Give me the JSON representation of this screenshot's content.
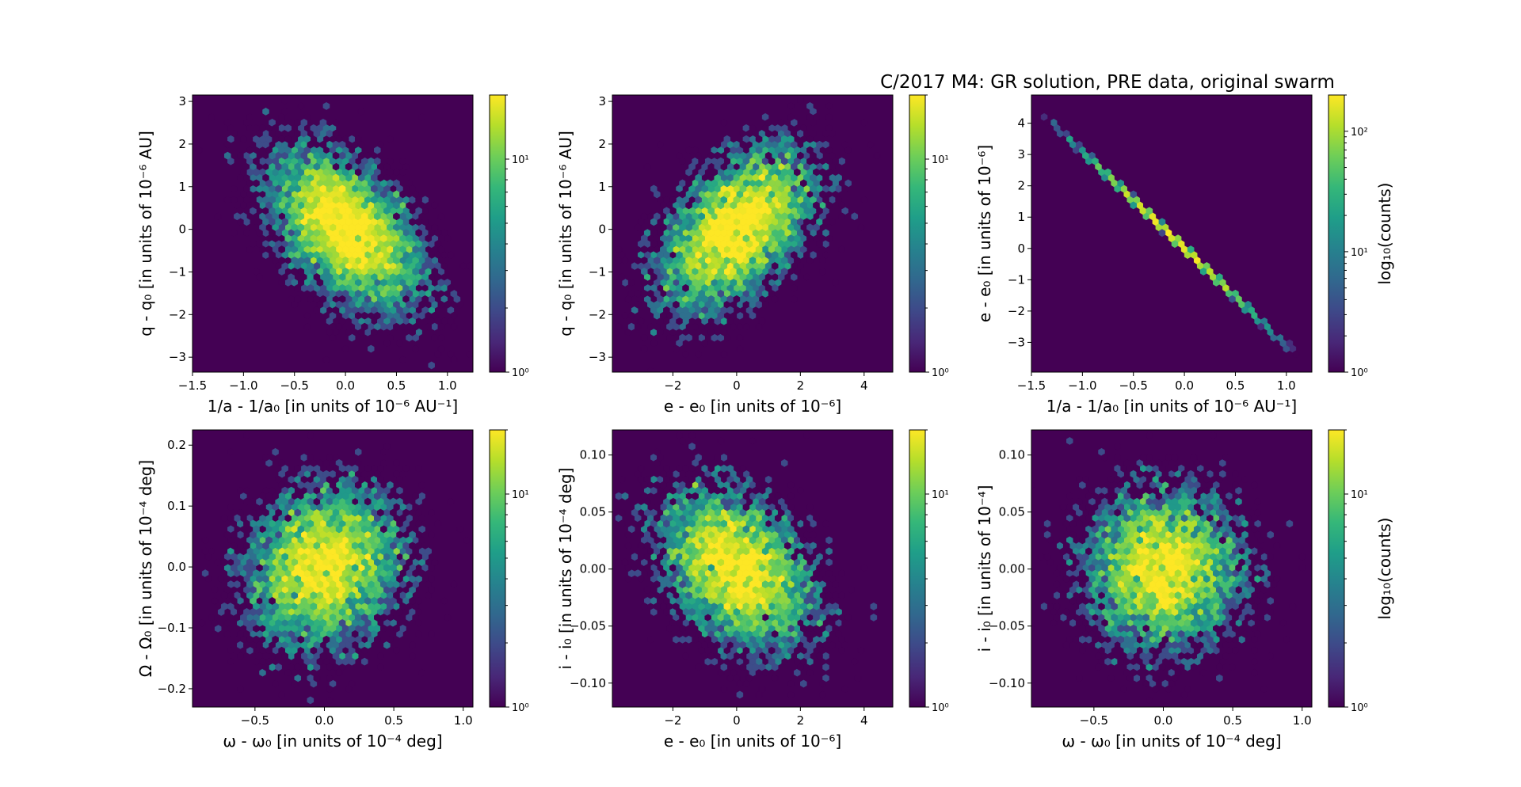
{
  "figure": {
    "title": "C/2017 M4: GR solution, PRE data, original swarm"
  },
  "colormap": {
    "name": "viridis",
    "stops": [
      "#440154",
      "#482878",
      "#3e4989",
      "#31688e",
      "#26828e",
      "#1f9e89",
      "#35b779",
      "#6ece58",
      "#b5de2b",
      "#fde725"
    ]
  },
  "chart_data": [
    {
      "type": "heatmap",
      "subtype": "hexbin",
      "panel": "top-left",
      "xlabel": "1/a - 1/a₀ [in units of 10⁻⁶ AU⁻¹]",
      "ylabel": "q - q₀ [in units of 10⁻⁶ AU]",
      "xlim": [
        -1.5,
        1.25
      ],
      "ylim": [
        -3.35,
        3.15
      ],
      "xticks": [
        -1.5,
        -1.0,
        -0.5,
        0.0,
        0.5,
        1.0
      ],
      "xticklabels": [
        "−1.5",
        "−1.0",
        "−0.5",
        "0.0",
        "0.5",
        "1.0"
      ],
      "yticks": [
        -3,
        -2,
        -1,
        0,
        1,
        2,
        3
      ],
      "yticklabels": [
        "−3",
        "−2",
        "−1",
        "0",
        "1",
        "2",
        "3"
      ],
      "distribution": {
        "kind": "gaussian",
        "mean_x": 0.0,
        "mean_y": 0.0,
        "std_x": 0.38,
        "std_y": 0.95,
        "correlation": -0.5
      },
      "color_scale": "log",
      "count_range": [
        1,
        20
      ],
      "colorbar": {
        "ticks": [
          1,
          10
        ],
        "ticklabels": [
          "10⁰",
          "10¹"
        ],
        "label": ""
      }
    },
    {
      "type": "heatmap",
      "subtype": "hexbin",
      "panel": "top-middle",
      "xlabel": "e - e₀ [in units of 10⁻⁶]",
      "ylabel": "q - q₀ [in units of 10⁻⁶ AU]",
      "xlim": [
        -3.9,
        4.9
      ],
      "ylim": [
        -3.35,
        3.15
      ],
      "xticks": [
        -2,
        0,
        2,
        4
      ],
      "xticklabels": [
        "−2",
        "0",
        "2",
        "4"
      ],
      "yticks": [
        -3,
        -2,
        -1,
        0,
        1,
        2,
        3
      ],
      "yticklabels": [
        "−3",
        "−2",
        "−1",
        "0",
        "1",
        "2",
        "3"
      ],
      "distribution": {
        "kind": "gaussian",
        "mean_x": 0.0,
        "mean_y": 0.0,
        "std_x": 1.2,
        "std_y": 0.95,
        "correlation": 0.5
      },
      "color_scale": "log",
      "count_range": [
        1,
        20
      ],
      "colorbar": {
        "ticks": [
          1,
          10
        ],
        "ticklabels": [
          "10⁰",
          "10¹"
        ],
        "label": ""
      }
    },
    {
      "type": "heatmap",
      "subtype": "hexbin",
      "panel": "top-right",
      "xlabel": "1/a - 1/a₀ [in units of 10⁻⁶ AU⁻¹]",
      "ylabel": "e - e₀ [in units of 10⁻⁶]",
      "xlim": [
        -1.5,
        1.25
      ],
      "ylim": [
        -3.95,
        4.9
      ],
      "xticks": [
        -1.5,
        -1.0,
        -0.5,
        0.0,
        0.5,
        1.0
      ],
      "xticklabels": [
        "−1.5",
        "−1.0",
        "−0.5",
        "0.0",
        "0.5",
        "1.0"
      ],
      "yticks": [
        -3,
        -2,
        -1,
        0,
        1,
        2,
        3,
        4
      ],
      "yticklabels": [
        "−3",
        "−2",
        "−1",
        "0",
        "1",
        "2",
        "3",
        "4"
      ],
      "distribution": {
        "kind": "linear",
        "slope": -3.1,
        "x_range": [
          -1.38,
          1.12
        ]
      },
      "color_scale": "log",
      "count_range": [
        1,
        200
      ],
      "colorbar": {
        "ticks": [
          1,
          10,
          100
        ],
        "ticklabels": [
          "10⁰",
          "10¹",
          "10²"
        ],
        "label": "log₁₀(counts)"
      }
    },
    {
      "type": "heatmap",
      "subtype": "hexbin",
      "panel": "bottom-left",
      "xlabel": "ω - ω₀ [in units of 10⁻⁴ deg]",
      "ylabel": "Ω - Ω₀ [in units of 10⁻⁴ deg]",
      "xlim": [
        -0.95,
        1.07
      ],
      "ylim": [
        -0.23,
        0.225
      ],
      "xticks": [
        -0.5,
        0.0,
        0.5,
        1.0
      ],
      "xticklabels": [
        "−0.5",
        "0.0",
        "0.5",
        "1.0"
      ],
      "yticks": [
        -0.2,
        -0.1,
        0.0,
        0.1,
        0.2
      ],
      "yticklabels": [
        "−0.2",
        "−0.1",
        "0.0",
        "0.1",
        "0.2"
      ],
      "distribution": {
        "kind": "gaussian",
        "mean_x": 0.0,
        "mean_y": 0.0,
        "std_x": 0.28,
        "std_y": 0.066,
        "correlation": 0.15
      },
      "color_scale": "log",
      "count_range": [
        1,
        20
      ],
      "colorbar": {
        "ticks": [
          1,
          10
        ],
        "ticklabels": [
          "10⁰",
          "10¹"
        ],
        "label": ""
      }
    },
    {
      "type": "heatmap",
      "subtype": "hexbin",
      "panel": "bottom-middle",
      "xlabel": "e - e₀ [in units of 10⁻⁶]",
      "ylabel": "i - i₀ [in units of 10⁻⁴ deg]",
      "xlim": [
        -3.9,
        4.9
      ],
      "ylim": [
        -0.121,
        0.122
      ],
      "xticks": [
        -2,
        0,
        2,
        4
      ],
      "xticklabels": [
        "−2",
        "0",
        "2",
        "4"
      ],
      "yticks": [
        -0.1,
        -0.05,
        0.0,
        0.05,
        0.1
      ],
      "yticklabels": [
        "−0.10",
        "−0.05",
        "0.00",
        "0.05",
        "0.10"
      ],
      "distribution": {
        "kind": "gaussian",
        "mean_x": 0.0,
        "mean_y": 0.0,
        "std_x": 1.2,
        "std_y": 0.035,
        "correlation": -0.35
      },
      "color_scale": "log",
      "count_range": [
        1,
        20
      ],
      "colorbar": {
        "ticks": [
          1,
          10
        ],
        "ticklabels": [
          "10⁰",
          "10¹"
        ],
        "label": ""
      }
    },
    {
      "type": "heatmap",
      "subtype": "hexbin",
      "panel": "bottom-right",
      "xlabel": "ω - ω₀ [in units of 10⁻⁴ deg]",
      "ylabel": "i - i₀ [in units of 10⁻⁴]",
      "xlim": [
        -0.95,
        1.07
      ],
      "ylim": [
        -0.121,
        0.122
      ],
      "xticks": [
        -0.5,
        0.0,
        0.5,
        1.0
      ],
      "xticklabels": [
        "−0.5",
        "0.0",
        "0.5",
        "1.0"
      ],
      "yticks": [
        -0.1,
        -0.05,
        0.0,
        0.05,
        0.1
      ],
      "yticklabels": [
        "−0.10",
        "−0.05",
        "0.00",
        "0.05",
        "0.10"
      ],
      "distribution": {
        "kind": "gaussian",
        "mean_x": 0.0,
        "mean_y": 0.0,
        "std_x": 0.28,
        "std_y": 0.035,
        "correlation": 0.0
      },
      "color_scale": "log",
      "count_range": [
        1,
        20
      ],
      "colorbar": {
        "ticks": [
          1,
          10
        ],
        "ticklabels": [
          "10⁰",
          "10¹"
        ],
        "label": "log₁₀(counts)"
      }
    }
  ]
}
